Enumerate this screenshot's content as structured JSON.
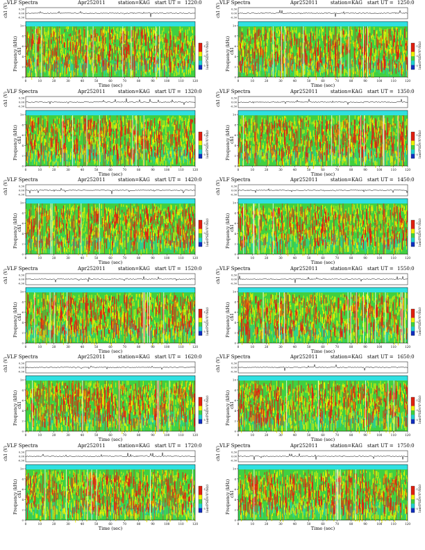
{
  "header": {
    "prefix": "VLF Spectra",
    "date": "Apr252011",
    "station": "station=KAG",
    "start_label": "start UT ="
  },
  "axes": {
    "xlabel": "Time (sec)",
    "ch_label": "ch1 (V)",
    "ylabel": "Frequency (kHz)",
    "cb_label": "log(PSD)(V²/Hz)",
    "x_ticks": [
      "0",
      "10",
      "20",
      "30",
      "40",
      "50",
      "60",
      "70",
      "80",
      "90",
      "100",
      "110",
      "120"
    ],
    "y_ticks": [
      "0",
      "2",
      "4",
      "6",
      "8",
      "10"
    ],
    "amp_ticks": [
      "0.30",
      "0.00",
      "-0.30"
    ],
    "cb_ticks": [
      "-1",
      "-3",
      "-5"
    ]
  },
  "palette": {
    "low": "#1030c0",
    "mid": "#20d0d0",
    "green": "#40d040",
    "yellow": "#f0f000",
    "red": "#e02010",
    "band": "#30e0e0"
  },
  "panels": [
    {
      "start_ut": "1220:0"
    },
    {
      "start_ut": "1250:0"
    },
    {
      "start_ut": "1320:0"
    },
    {
      "start_ut": "1350:0"
    },
    {
      "start_ut": "1420:0"
    },
    {
      "start_ut": "1450:0"
    },
    {
      "start_ut": "1520:0"
    },
    {
      "start_ut": "1550:0"
    },
    {
      "start_ut": "1620:0"
    },
    {
      "start_ut": "1650:0"
    },
    {
      "start_ut": "1720:0"
    },
    {
      "start_ut": "1750:0"
    }
  ],
  "chart_data": {
    "type": "heatmap",
    "x_range": [
      0,
      120
    ],
    "y_range": [
      0,
      10
    ],
    "xlabel": "Time (sec)",
    "ylabel": "Frequency (kHz)",
    "colorbar_label": "log(PSD)(V²/Hz)",
    "layout": "6 rows x 2 columns"
  }
}
